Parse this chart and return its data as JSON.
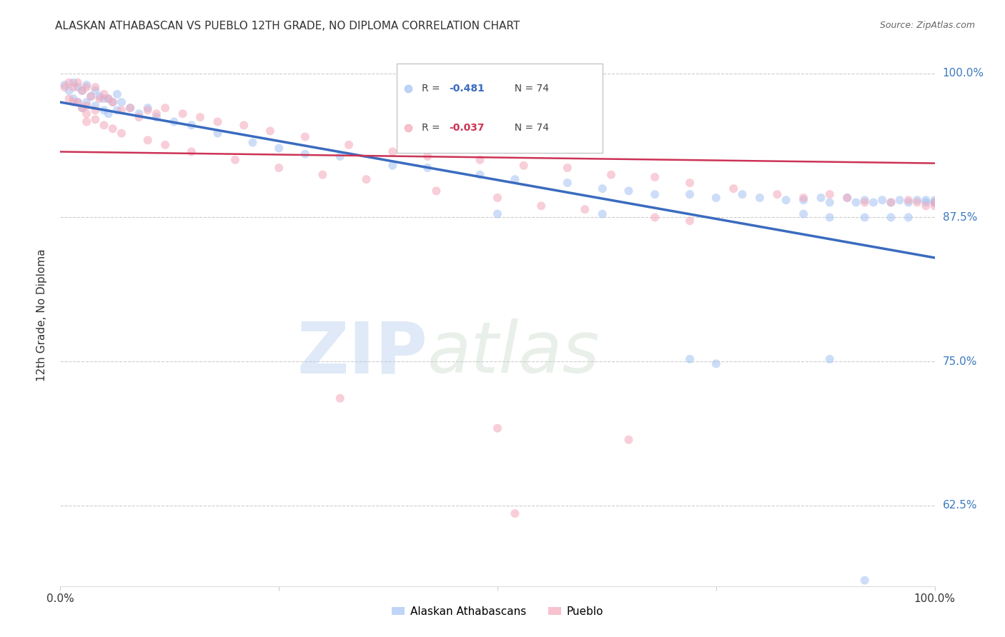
{
  "title": "ALASKAN ATHABASCAN VS PUEBLO 12TH GRADE, NO DIPLOMA CORRELATION CHART",
  "source": "Source: ZipAtlas.com",
  "ylabel": "12th Grade, No Diploma",
  "legend_blue_r": "-0.481",
  "legend_blue_n": "74",
  "legend_pink_r": "-0.037",
  "legend_pink_n": "74",
  "legend_blue_label": "Alaskan Athabascans",
  "legend_pink_label": "Pueblo",
  "ytick_labels": [
    "100.0%",
    "87.5%",
    "75.0%",
    "62.5%"
  ],
  "ytick_values": [
    1.0,
    0.875,
    0.75,
    0.625
  ],
  "blue_scatter_x": [
    0.005,
    0.01,
    0.015,
    0.015,
    0.02,
    0.02,
    0.025,
    0.025,
    0.03,
    0.03,
    0.035,
    0.04,
    0.04,
    0.045,
    0.05,
    0.05,
    0.055,
    0.055,
    0.06,
    0.065,
    0.065,
    0.07,
    0.08,
    0.09,
    0.1,
    0.11,
    0.13,
    0.15,
    0.18,
    0.22,
    0.25,
    0.28,
    0.32,
    0.38,
    0.42,
    0.48,
    0.52,
    0.58,
    0.62,
    0.65,
    0.68,
    0.72,
    0.75,
    0.78,
    0.8,
    0.83,
    0.85,
    0.87,
    0.88,
    0.9,
    0.91,
    0.92,
    0.93,
    0.94,
    0.95,
    0.96,
    0.97,
    0.98,
    0.99,
    0.99,
    1.0,
    1.0,
    1.0,
    0.5,
    0.62,
    0.85,
    0.88,
    0.92,
    0.95,
    0.97,
    0.72,
    0.75,
    0.88,
    0.92
  ],
  "blue_scatter_y": [
    0.99,
    0.985,
    0.992,
    0.978,
    0.988,
    0.975,
    0.985,
    0.97,
    0.99,
    0.975,
    0.98,
    0.985,
    0.972,
    0.98,
    0.978,
    0.968,
    0.978,
    0.965,
    0.975,
    0.982,
    0.968,
    0.975,
    0.97,
    0.965,
    0.97,
    0.962,
    0.958,
    0.955,
    0.948,
    0.94,
    0.935,
    0.93,
    0.928,
    0.92,
    0.918,
    0.912,
    0.908,
    0.905,
    0.9,
    0.898,
    0.895,
    0.895,
    0.892,
    0.895,
    0.892,
    0.89,
    0.89,
    0.892,
    0.888,
    0.892,
    0.888,
    0.89,
    0.888,
    0.89,
    0.888,
    0.89,
    0.888,
    0.89,
    0.89,
    0.888,
    0.888,
    0.89,
    0.888,
    0.878,
    0.878,
    0.878,
    0.875,
    0.875,
    0.875,
    0.875,
    0.752,
    0.748,
    0.752,
    0.56
  ],
  "pink_scatter_x": [
    0.005,
    0.01,
    0.01,
    0.015,
    0.015,
    0.02,
    0.025,
    0.025,
    0.03,
    0.03,
    0.035,
    0.04,
    0.04,
    0.045,
    0.05,
    0.055,
    0.06,
    0.07,
    0.08,
    0.09,
    0.1,
    0.11,
    0.12,
    0.14,
    0.16,
    0.18,
    0.21,
    0.24,
    0.28,
    0.33,
    0.38,
    0.42,
    0.48,
    0.53,
    0.58,
    0.63,
    0.68,
    0.72,
    0.77,
    0.82,
    0.85,
    0.88,
    0.9,
    0.92,
    0.95,
    0.97,
    0.98,
    0.99,
    1.0,
    1.0,
    0.02,
    0.03,
    0.03,
    0.04,
    0.05,
    0.06,
    0.07,
    0.1,
    0.12,
    0.15,
    0.2,
    0.25,
    0.3,
    0.35,
    0.43,
    0.5,
    0.55,
    0.6,
    0.68,
    0.72,
    0.32,
    0.5,
    0.65,
    0.52
  ],
  "pink_scatter_y": [
    0.988,
    0.992,
    0.978,
    0.988,
    0.975,
    0.992,
    0.985,
    0.97,
    0.988,
    0.972,
    0.98,
    0.988,
    0.968,
    0.978,
    0.982,
    0.978,
    0.975,
    0.968,
    0.97,
    0.962,
    0.968,
    0.965,
    0.97,
    0.965,
    0.962,
    0.958,
    0.955,
    0.95,
    0.945,
    0.938,
    0.932,
    0.928,
    0.925,
    0.92,
    0.918,
    0.912,
    0.91,
    0.905,
    0.9,
    0.895,
    0.892,
    0.895,
    0.892,
    0.888,
    0.888,
    0.89,
    0.888,
    0.885,
    0.888,
    0.885,
    0.975,
    0.965,
    0.958,
    0.96,
    0.955,
    0.952,
    0.948,
    0.942,
    0.938,
    0.932,
    0.925,
    0.918,
    0.912,
    0.908,
    0.898,
    0.892,
    0.885,
    0.882,
    0.875,
    0.872,
    0.718,
    0.692,
    0.682,
    0.618
  ],
  "blue_line_x": [
    0.0,
    1.0
  ],
  "blue_line_y": [
    0.975,
    0.84
  ],
  "pink_line_x": [
    0.0,
    1.0
  ],
  "pink_line_y": [
    0.932,
    0.922
  ],
  "blue_color": "#a4c2f4",
  "pink_color": "#f4a7b9",
  "blue_line_color": "#3a6bbf",
  "pink_line_color": "#cc3355",
  "marker_size": 75,
  "marker_alpha": 0.55,
  "background_color": "#ffffff",
  "grid_color": "#cccccc",
  "watermark_zip": "ZIP",
  "watermark_atlas": "atlas",
  "xlim": [
    0.0,
    1.0
  ],
  "ylim": [
    0.555,
    1.025
  ]
}
